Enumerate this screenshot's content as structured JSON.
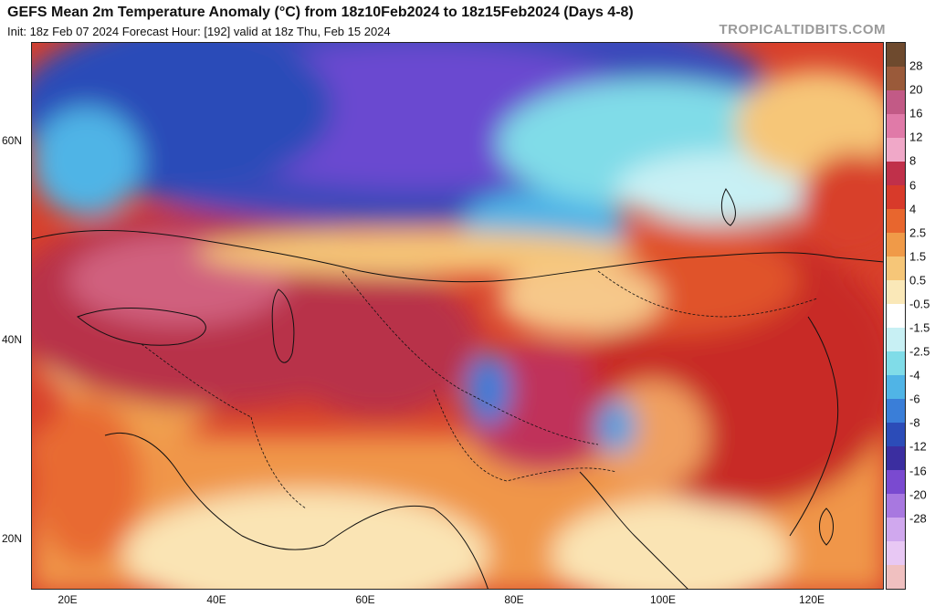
{
  "header": {
    "title": "GEFS Mean 2m Temperature Anomaly (°C) from 18z10Feb2024 to 18z15Feb2024 (Days 4-8)",
    "subtitle": "Init: 18z Feb 07 2024   Forecast Hour: [192]   valid at 18z Thu, Feb 15 2024",
    "brand": "TROPICALTIDBITS.COM"
  },
  "axes": {
    "lat_labels": [
      "60N",
      "40N",
      "20N"
    ],
    "lon_labels": [
      "20E",
      "40E",
      "60E",
      "80E",
      "100E",
      "120E"
    ]
  },
  "colorbar": {
    "labels": [
      "28",
      "20",
      "16",
      "12",
      "8",
      "6",
      "4",
      "2.5",
      "1.5",
      "0.5",
      "-0.5",
      "-1.5",
      "-2.5",
      "-4",
      "-6",
      "-8",
      "-12",
      "-16",
      "-20",
      "-28"
    ],
    "colors": [
      "#6e4a2e",
      "#9a5a3a",
      "#c25a86",
      "#e07aa8",
      "#f0a8c8",
      "#c0304a",
      "#d83a2a",
      "#e8662e",
      "#f09a48",
      "#f6c678",
      "#fae8b8",
      "#ffffff",
      "#c8f0f4",
      "#80dce8",
      "#50b4e6",
      "#3a7ed8",
      "#2c4cb8",
      "#3b2ea0",
      "#7a4ad0",
      "#a878e0",
      "#d0a8ee",
      "#e8c8f4",
      "#f0c0c0"
    ]
  }
}
